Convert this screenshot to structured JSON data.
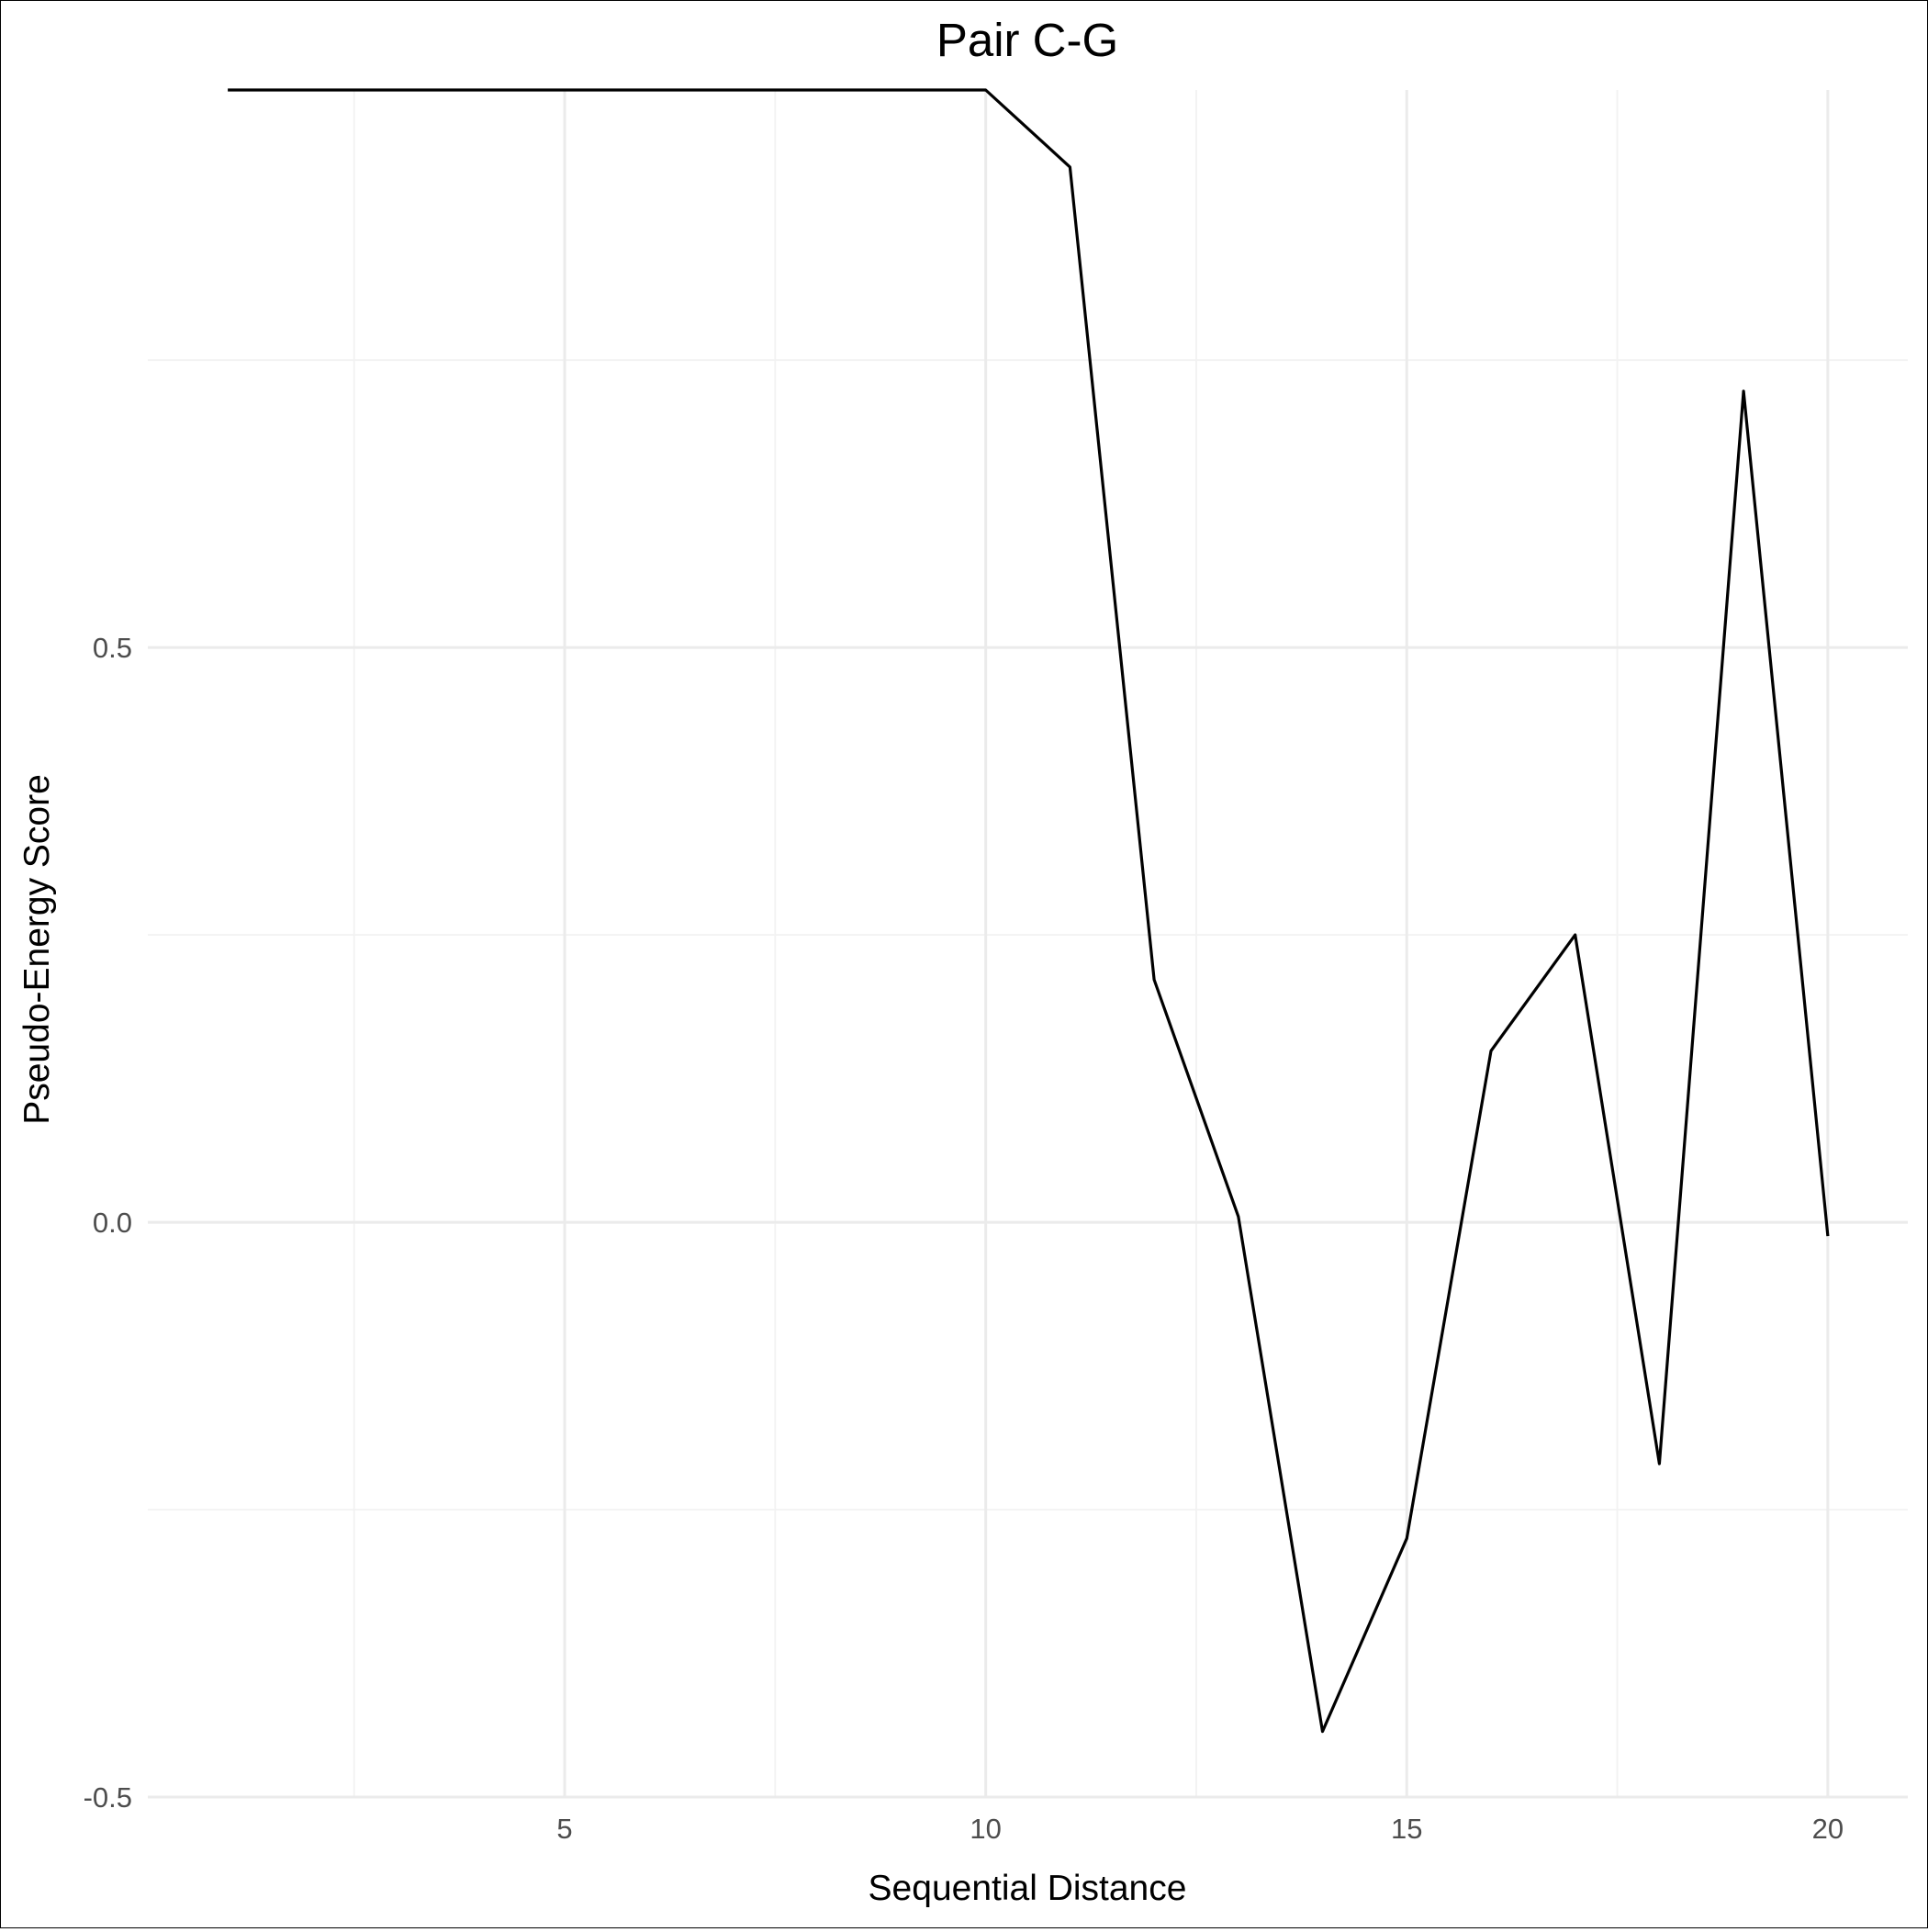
{
  "chart_data": {
    "type": "line",
    "title": "Pair C-G",
    "xlabel": "Sequential Distance",
    "ylabel": "Pseudo-Energy Score",
    "x": [
      1,
      2,
      3,
      4,
      5,
      6,
      7,
      8,
      9,
      10,
      11,
      12,
      13,
      14,
      15,
      16,
      17,
      18,
      19,
      20
    ],
    "series": [
      {
        "values": [
          0.985,
          0.985,
          0.985,
          0.985,
          0.985,
          0.985,
          0.985,
          0.985,
          0.985,
          0.985,
          0.918,
          0.211,
          0.005,
          -0.443,
          -0.275,
          0.149,
          0.25,
          -0.21,
          0.723,
          -0.012
        ]
      }
    ],
    "xlim": [
      0.05,
      20.95
    ],
    "ylim": [
      -0.5,
      0.985
    ],
    "x_ticks": [
      5,
      10,
      15,
      20
    ],
    "x_tick_labels": [
      "5",
      "10",
      "15",
      "20"
    ],
    "x_minor_ticks": [
      2.5,
      7.5,
      12.5,
      17.5
    ],
    "y_ticks": [
      -0.5,
      0.0,
      0.5
    ],
    "y_tick_labels": [
      "-0.5",
      "0.0",
      "0.5"
    ],
    "y_minor_ticks": [
      -0.25,
      0.25,
      0.75
    ],
    "grid": true,
    "legend": "none",
    "line_color": "#000000",
    "grid_color": "#ebebeb"
  }
}
